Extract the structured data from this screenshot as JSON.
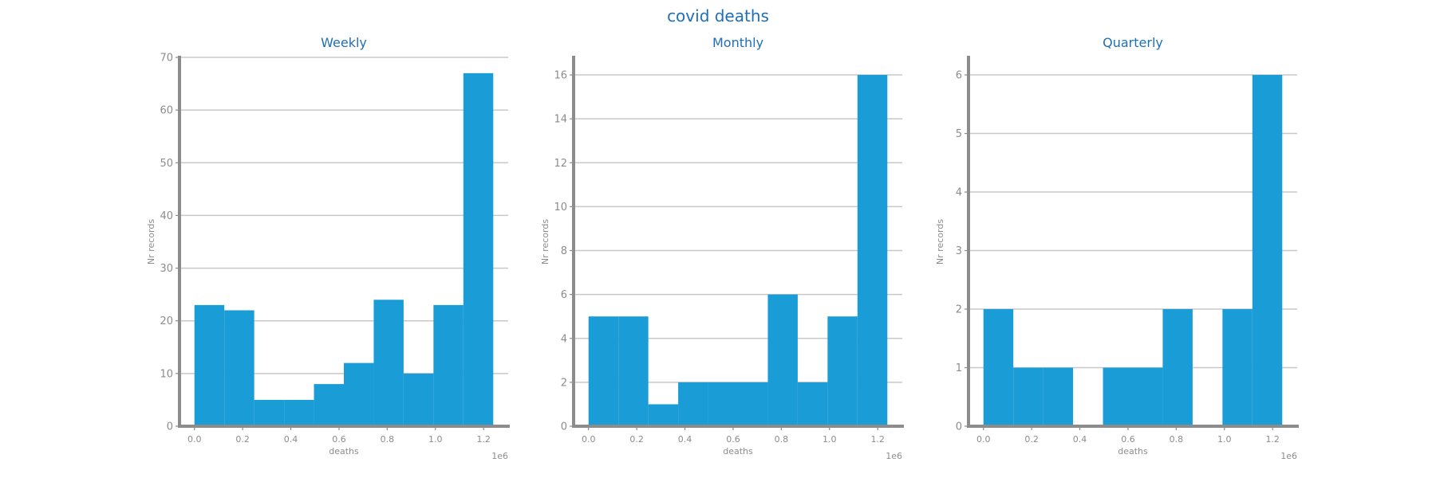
{
  "colors": {
    "bar": "#1a9dd6",
    "title": "#1f6fb5",
    "grid": "#c8c8c8",
    "axis": "#8c8c8c",
    "text": "#8c8c8c"
  },
  "suptitle": "covid deaths",
  "chart_data": [
    {
      "type": "bar",
      "title": "Weekly",
      "xlabel": "deaths",
      "ylabel": "Nr records",
      "x_offset_label": "1e6",
      "bin_edges": [
        0.0,
        0.124,
        0.248,
        0.372,
        0.496,
        0.62,
        0.744,
        0.868,
        0.992,
        1.116,
        1.24
      ],
      "values": [
        23,
        22,
        5,
        5,
        8,
        12,
        24,
        10,
        23,
        67
      ],
      "xlim": [
        -0.062,
        1.302
      ],
      "ylim": [
        0,
        70
      ],
      "yticks": [
        0,
        10,
        20,
        30,
        40,
        50,
        60,
        70
      ],
      "xticks": [
        0.0,
        0.2,
        0.4,
        0.6,
        0.8,
        1.0,
        1.2
      ],
      "xtick_labels": [
        "0.0",
        "0.2",
        "0.4",
        "0.6",
        "0.8",
        "1.0",
        "1.2"
      ],
      "grid": "horizontal"
    },
    {
      "type": "bar",
      "title": "Monthly",
      "xlabel": "deaths",
      "ylabel": "Nr records",
      "x_offset_label": "1e6",
      "bin_edges": [
        0.0,
        0.124,
        0.248,
        0.372,
        0.496,
        0.62,
        0.744,
        0.868,
        0.992,
        1.116,
        1.24
      ],
      "values": [
        5,
        5,
        1,
        2,
        2,
        2,
        6,
        2,
        5,
        16
      ],
      "xlim": [
        -0.062,
        1.302
      ],
      "ylim": [
        0,
        16.8
      ],
      "yticks": [
        0,
        2,
        4,
        6,
        8,
        10,
        12,
        14,
        16
      ],
      "xticks": [
        0.0,
        0.2,
        0.4,
        0.6,
        0.8,
        1.0,
        1.2
      ],
      "xtick_labels": [
        "0.0",
        "0.2",
        "0.4",
        "0.6",
        "0.8",
        "1.0",
        "1.2"
      ],
      "grid": "horizontal"
    },
    {
      "type": "bar",
      "title": "Quarterly",
      "xlabel": "deaths",
      "ylabel": "Nr records",
      "x_offset_label": "1e6",
      "bin_edges": [
        0.0,
        0.124,
        0.248,
        0.372,
        0.496,
        0.62,
        0.744,
        0.868,
        0.992,
        1.116,
        1.24
      ],
      "values": [
        2,
        1,
        1,
        0,
        1,
        1,
        2,
        0,
        2,
        6
      ],
      "xlim": [
        -0.062,
        1.302
      ],
      "ylim": [
        0,
        6.3
      ],
      "yticks": [
        0,
        1,
        2,
        3,
        4,
        5,
        6
      ],
      "xticks": [
        0.0,
        0.2,
        0.4,
        0.6,
        0.8,
        1.0,
        1.2
      ],
      "xtick_labels": [
        "0.0",
        "0.2",
        "0.4",
        "0.6",
        "0.8",
        "1.0",
        "1.2"
      ],
      "grid": "horizontal"
    }
  ]
}
